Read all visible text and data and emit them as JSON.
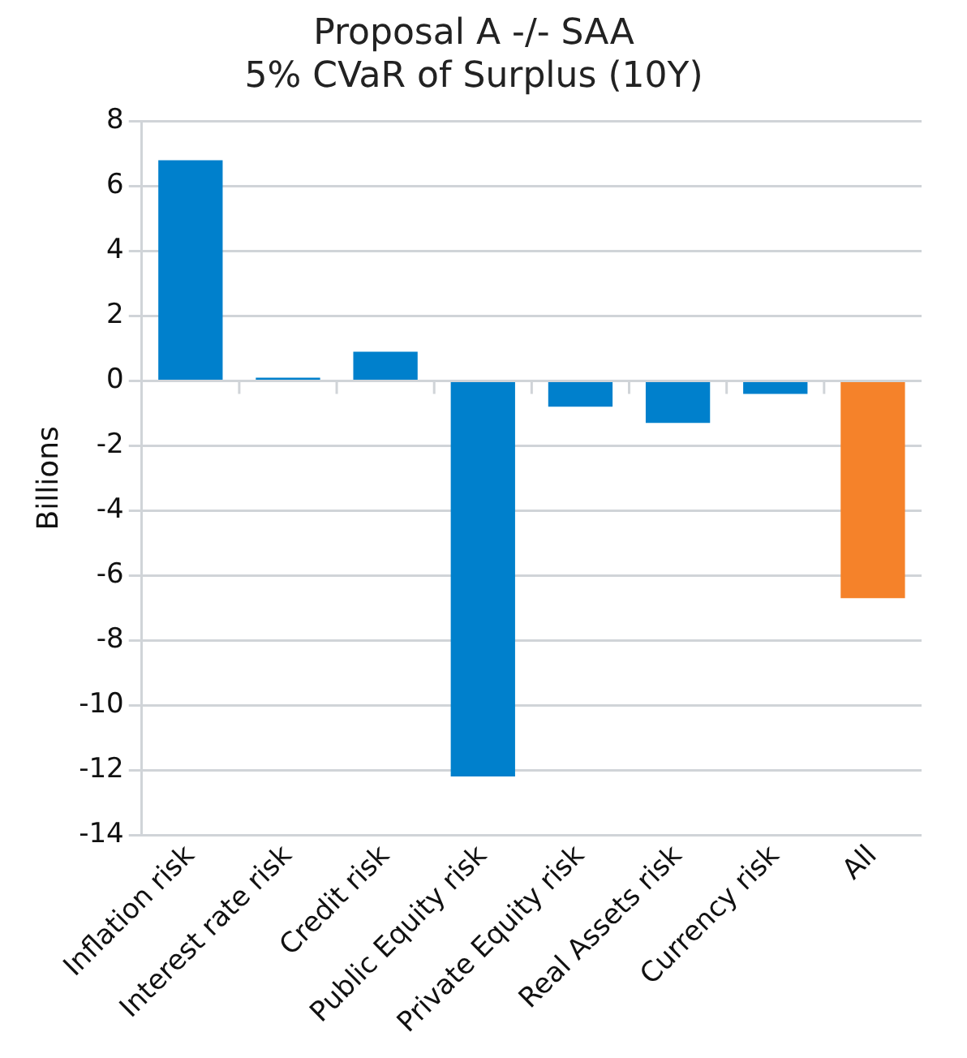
{
  "chart_data": {
    "type": "bar",
    "title": "Proposal A -/- SAA\n5% CVaR of Surplus (10Y)",
    "ylabel": "Billions",
    "categories": [
      "Inflation risk",
      "Interest rate risk",
      "Credit risk",
      "Public Equity risk",
      "Private Equity risk",
      "Real Assets risk",
      "Currency risk",
      "All"
    ],
    "values": [
      6.8,
      0.1,
      0.9,
      -12.2,
      -0.8,
      -1.3,
      -0.4,
      -6.7
    ],
    "colors": [
      "#0080cc",
      "#0080cc",
      "#0080cc",
      "#0080cc",
      "#0080cc",
      "#0080cc",
      "#0080cc",
      "#f5822a"
    ],
    "ylim": [
      -14,
      8
    ],
    "yticks": [
      -14,
      -12,
      -10,
      -8,
      -6,
      -4,
      -2,
      0,
      2,
      4,
      6,
      8
    ],
    "grid": "y",
    "legend": false
  }
}
